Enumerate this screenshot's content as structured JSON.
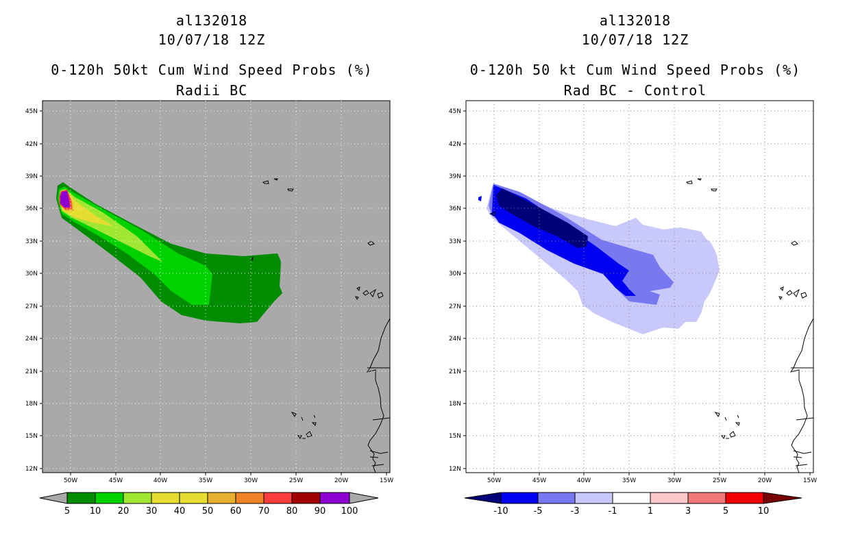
{
  "panels": [
    {
      "storm_id": "al132018",
      "datetime": "10/07/18 12Z",
      "title": "0-120h 50kt Cum Wind Speed Probs (%)",
      "subtitle": "Radii BC",
      "background": "#a9a9a9",
      "colorbar": {
        "labels": [
          "5",
          "10",
          "20",
          "30",
          "40",
          "50",
          "60",
          "70",
          "80",
          "90",
          "100"
        ],
        "colors": [
          "#008c00",
          "#00d200",
          "#a0e632",
          "#e6dc32",
          "#e6dc32",
          "#e6af2d",
          "#f08228",
          "#fa3c3c",
          "#a00000",
          "#8c00d2"
        ],
        "under_color": "#a9a9a9",
        "over_color": "#a9a9a9"
      }
    },
    {
      "storm_id": "al132018",
      "datetime": "10/07/18 12Z",
      "title": "0-120h 50 kt Cum Wind Speed Probs (%)",
      "subtitle": "Rad BC - Control",
      "background": "#ffffff",
      "colorbar": {
        "labels": [
          "-10",
          "-5",
          "-3",
          "-1",
          "1",
          "3",
          "5",
          "10"
        ],
        "colors": [
          "#0000f0",
          "#7878f0",
          "#c8c8fa",
          "#ffffff",
          "#fac8c8",
          "#f07878",
          "#f00000"
        ],
        "under_color": "#000078",
        "over_color": "#780000"
      }
    }
  ],
  "axes": {
    "lat_labels": [
      "45N",
      "42N",
      "39N",
      "36N",
      "33N",
      "30N",
      "27N",
      "24N",
      "21N",
      "18N",
      "15N",
      "12N"
    ],
    "lon_labels": [
      "50W",
      "45W",
      "40W",
      "35W",
      "30W",
      "25W",
      "20W",
      "15W"
    ]
  }
}
